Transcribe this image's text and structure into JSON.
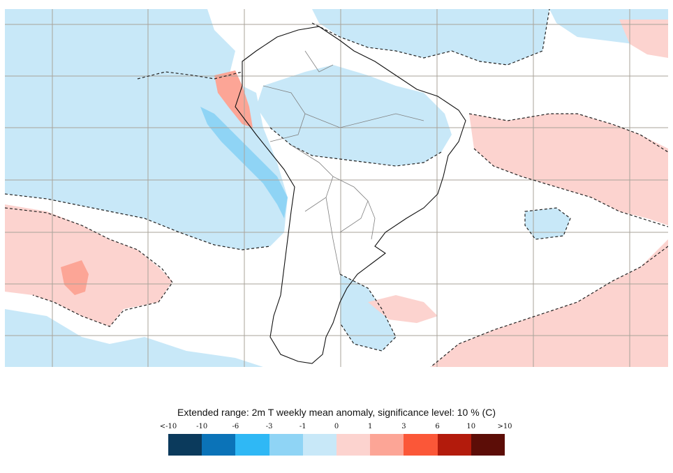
{
  "legend": {
    "title": "Extended range: 2m T weekly mean anomaly, significance level: 10 % (C)",
    "ticks": [
      "<-10",
      "-10",
      "-6",
      "-3",
      "-1",
      "0",
      "1",
      "3",
      "6",
      "10",
      ">10"
    ],
    "colors": [
      "#0b3a5c",
      "#0b73b8",
      "#2fb8f5",
      "#8fd4f5",
      "#c8e8f8",
      "#fcd3cf",
      "#fca596",
      "#fb5738",
      "#b31b0c",
      "#5c0d07"
    ]
  },
  "map": {
    "region": "South America",
    "anomaly_colors": {
      "cold_light": "#c8e8f8",
      "cold_medium": "#8fd4f5",
      "warm_light": "#fcd3cf",
      "warm_medium": "#fca596"
    },
    "gridline_color": "#a9a39a",
    "coastline_color": "#111111",
    "border_color": "#808080"
  }
}
